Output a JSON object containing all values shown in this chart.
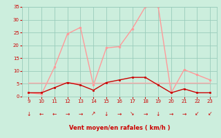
{
  "hours": [
    9,
    10,
    11,
    12,
    13,
    14,
    15,
    16,
    17,
    18,
    19,
    20,
    21,
    22,
    23
  ],
  "rafales": [
    1.5,
    1.0,
    11.5,
    24.5,
    27.0,
    4.5,
    19.0,
    19.5,
    26.5,
    35.0,
    35.0,
    1.5,
    10.5,
    8.5,
    6.5
  ],
  "vent_moyen": [
    1.5,
    1.5,
    3.5,
    5.5,
    4.5,
    2.5,
    5.5,
    6.5,
    7.5,
    7.5,
    4.5,
    1.5,
    3.0,
    1.5,
    1.5
  ],
  "vent_constant": [
    5.5,
    5.5,
    5.5,
    5.5,
    5.5,
    5.5,
    5.5,
    5.5,
    5.5,
    5.5,
    5.5,
    5.5,
    5.5,
    5.5,
    5.5
  ],
  "arrows": [
    "↓",
    "←",
    "←",
    "→",
    "→",
    "↗",
    "↓",
    "→",
    "↘",
    "→",
    "↓",
    "→",
    "→",
    "↙",
    "↙"
  ],
  "line_color_rafales": "#ff9999",
  "line_color_vent": "#cc0000",
  "line_color_constant": "#ffaaaa",
  "bg_color": "#cceedd",
  "grid_color": "#99ccbb",
  "xlabel": "Vent moyen/en rafales ( km/h )",
  "xlabel_color": "#cc0000",
  "tick_color": "#cc0000",
  "ylim": [
    0,
    35
  ],
  "yticks": [
    0,
    5,
    10,
    15,
    20,
    25,
    30,
    35
  ],
  "xlim": [
    9,
    23
  ]
}
